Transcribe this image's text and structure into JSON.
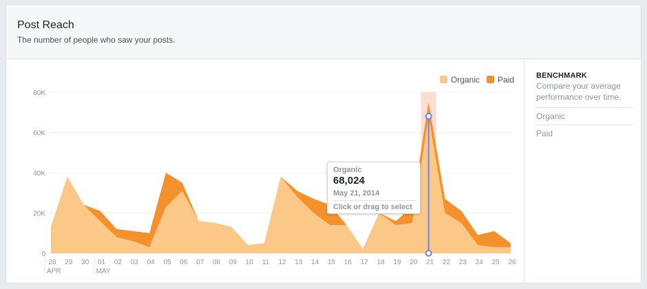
{
  "header": {
    "title": "Post Reach",
    "subtitle": "The number of people who saw your posts."
  },
  "sidebar": {
    "benchmark_title": "BENCHMARK",
    "benchmark_desc": "Compare your average performance over time.",
    "items": [
      {
        "label": "Organic"
      },
      {
        "label": "Paid"
      }
    ]
  },
  "tooltip": {
    "series": "Organic",
    "value": "68,024",
    "date": "May 21, 2014",
    "hint": "Click or drag to select"
  },
  "colors": {
    "organic": "#fcc888",
    "paid": "#f4912c",
    "highlight": "#f9d1c3",
    "marker": "#6d84e8"
  },
  "chart_data": {
    "type": "area",
    "stacked": true,
    "categories": [
      "28",
      "29",
      "30",
      "01",
      "02",
      "03",
      "04",
      "05",
      "06",
      "07",
      "08",
      "09",
      "10",
      "11",
      "12",
      "13",
      "14",
      "15",
      "16",
      "17",
      "18",
      "19",
      "20",
      "21",
      "22",
      "23",
      "24",
      "25",
      "26"
    ],
    "month_labels": [
      {
        "label": "APR",
        "at_category": "28"
      },
      {
        "label": "MAY",
        "at_category": "01"
      }
    ],
    "series": [
      {
        "name": "Organic",
        "values": [
          13000,
          38000,
          24000,
          16000,
          8000,
          6000,
          3000,
          23000,
          31000,
          16000,
          15000,
          13000,
          4000,
          5000,
          38000,
          28000,
          20000,
          14000,
          14000,
          2000,
          20000,
          14000,
          15000,
          68024,
          20000,
          15000,
          4000,
          3000,
          3000
        ]
      },
      {
        "name": "Paid",
        "values": [
          0,
          0,
          0,
          5000,
          4000,
          5000,
          7000,
          17000,
          4000,
          0,
          0,
          0,
          0,
          0,
          0,
          3000,
          7000,
          10000,
          0,
          0,
          0,
          2000,
          8000,
          7000,
          7000,
          6000,
          5000,
          8000,
          2000
        ]
      }
    ],
    "yticks": [
      {
        "value": 0,
        "label": "0"
      },
      {
        "value": 20000,
        "label": "20K"
      },
      {
        "value": 40000,
        "label": "40K"
      },
      {
        "value": 60000,
        "label": "60K"
      },
      {
        "value": 80000,
        "label": "80K"
      }
    ],
    "ylim": [
      0,
      80000
    ],
    "highlight_category": "21",
    "grid": true,
    "legend_position": "top-right"
  }
}
